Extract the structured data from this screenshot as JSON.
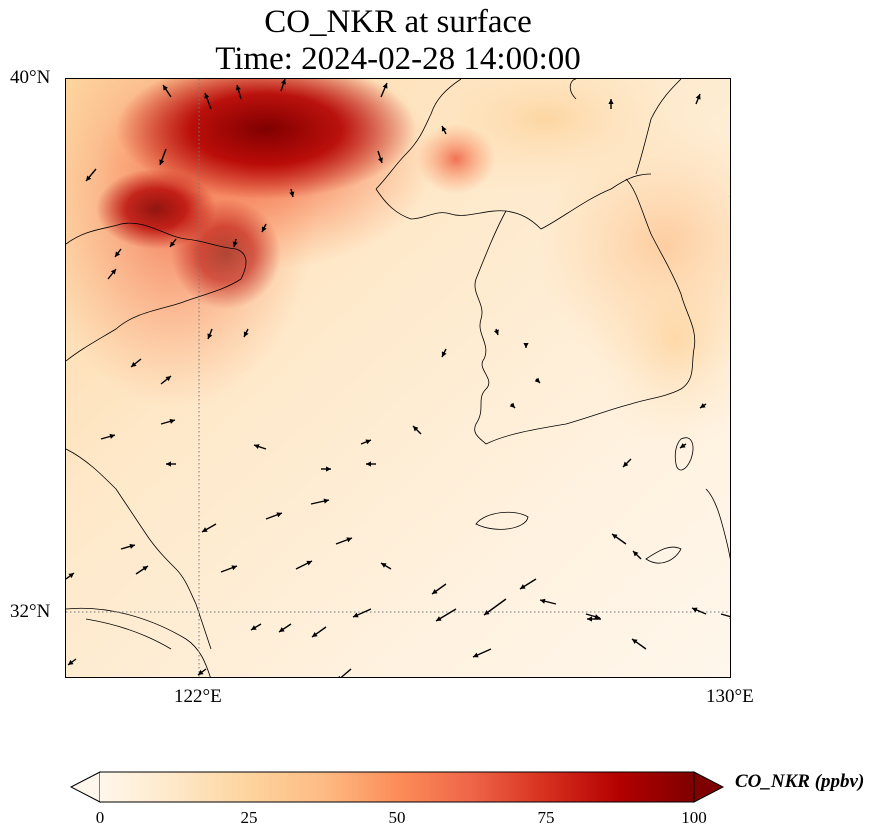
{
  "title": {
    "line1": "CO_NKR at surface",
    "line2": "Time: 2024-02-28 14:00:00"
  },
  "map": {
    "type": "gridded concentration field with wind vectors",
    "extent": {
      "lon_min": 119.5,
      "lon_max": 130,
      "lat_min": 31,
      "lat_max": 40
    },
    "gridlines": {
      "lon": [
        122
      ],
      "lat": [
        32
      ],
      "style": "dotted"
    },
    "lat_ticks": [
      "40°N",
      "32°N"
    ],
    "lon_ticks": [
      "122°E",
      "130°E"
    ],
    "coastlines": true,
    "wind_vectors": true,
    "high_concentration_region": "northwest (Bohai / Liaoning coast), values near or above 100 ppbv"
  },
  "colorbar": {
    "label": "CO_NKR (ppbv)",
    "ticks": [
      "0",
      "25",
      "50",
      "75",
      "100"
    ],
    "range": [
      0,
      100
    ],
    "extend": "both",
    "colormap": "OrRd",
    "colors": [
      "#fff7ec",
      "#fee8c8",
      "#fdd49e",
      "#fdbb84",
      "#fc8d59",
      "#ef6548",
      "#d7301f",
      "#b30000",
      "#7f0000"
    ]
  },
  "chart_data": {
    "type": "heatmap",
    "title": "CO_NKR at surface",
    "subtitle": "Time: 2024-02-28 14:00:00",
    "xlabel": "",
    "ylabel": "",
    "x_ticks": [
      "122°E",
      "130°E"
    ],
    "y_ticks": [
      "40°N",
      "32°N"
    ],
    "xlim": [
      119.5,
      130
    ],
    "ylim": [
      31,
      40
    ],
    "value_range": [
      0,
      100
    ],
    "colorbar_label": "CO_NKR (ppbv)",
    "grid": true
  }
}
